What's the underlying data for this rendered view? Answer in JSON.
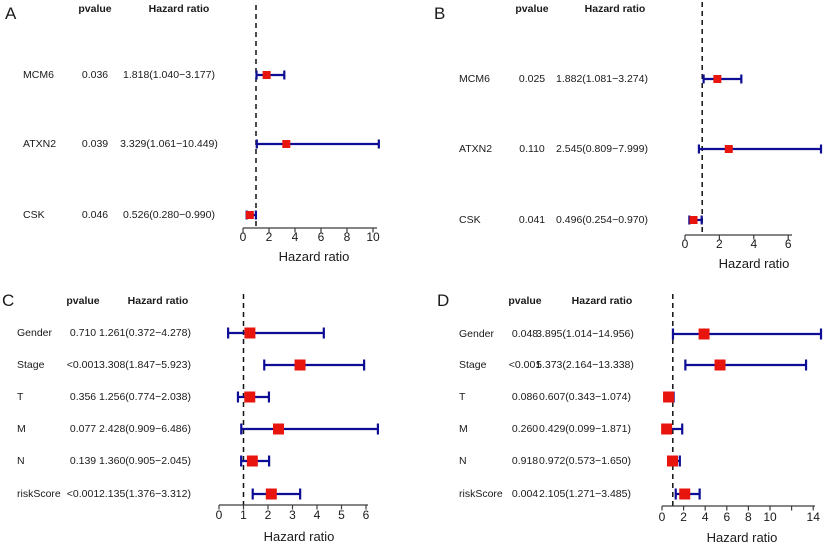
{
  "colors": {
    "background": "#ffffff",
    "text": "#1a1a1a",
    "axis": "#3c3c3c",
    "reference_line": "#111111",
    "whisker": "#0d0d96",
    "box": "#e8150f"
  },
  "chart_data": [
    {
      "type": "forest",
      "panel_label": "A",
      "columns": {
        "pvalue": "pvalue",
        "hazard_ratio": "Hazard ratio"
      },
      "xlabel": "Hazard ratio",
      "reference_line": 1,
      "axis": {
        "min": 0,
        "max": 10.5,
        "ticks": [
          0,
          2,
          4,
          6,
          8,
          10
        ],
        "tick_labels": [
          "0",
          "2",
          "4",
          "6",
          "8",
          "10"
        ]
      },
      "rows": [
        {
          "name": "MCM6",
          "pvalue": "0.036",
          "hr_ci": "1.818(1.040−3.177)",
          "hr": 1.818,
          "ci_low": 1.04,
          "ci_high": 3.177
        },
        {
          "name": "ATXN2",
          "pvalue": "0.039",
          "hr_ci": "3.329(1.061−10.449)",
          "hr": 3.329,
          "ci_low": 1.061,
          "ci_high": 10.449
        },
        {
          "name": "CSK",
          "pvalue": "0.046",
          "hr_ci": "0.526(0.280−0.990)",
          "hr": 0.526,
          "ci_low": 0.28,
          "ci_high": 0.99
        }
      ]
    },
    {
      "type": "forest",
      "panel_label": "B",
      "columns": {
        "pvalue": "pvalue",
        "hazard_ratio": "Hazard ratio"
      },
      "xlabel": "Hazard ratio",
      "reference_line": 1,
      "axis": {
        "min": 0,
        "max": 8,
        "ticks": [
          0,
          2,
          4,
          6
        ],
        "tick_labels": [
          "0",
          "2",
          "4",
          "6"
        ]
      },
      "rows": [
        {
          "name": "MCM6",
          "pvalue": "0.025",
          "hr_ci": "1.882(1.081−3.274)",
          "hr": 1.882,
          "ci_low": 1.081,
          "ci_high": 3.274
        },
        {
          "name": "ATXN2",
          "pvalue": "0.110",
          "hr_ci": "2.545(0.809−7.999)",
          "hr": 2.545,
          "ci_low": 0.809,
          "ci_high": 7.999
        },
        {
          "name": "CSK",
          "pvalue": "0.041",
          "hr_ci": "0.496(0.254−0.970)",
          "hr": 0.496,
          "ci_low": 0.254,
          "ci_high": 0.97
        }
      ]
    },
    {
      "type": "forest",
      "panel_label": "C",
      "columns": {
        "pvalue": "pvalue",
        "hazard_ratio": "Hazard ratio"
      },
      "xlabel": "Hazard ratio",
      "reference_line": 1,
      "axis": {
        "min": 0,
        "max": 6.5,
        "ticks": [
          0,
          1,
          2,
          3,
          4,
          5,
          6
        ],
        "tick_labels": [
          "0",
          "1",
          "2",
          "3",
          "4",
          "5",
          "6"
        ]
      },
      "rows": [
        {
          "name": "Gender",
          "pvalue": "0.710",
          "hr_ci": "1.261(0.372−4.278)",
          "hr": 1.261,
          "ci_low": 0.372,
          "ci_high": 4.278
        },
        {
          "name": "Stage",
          "pvalue": "<0.001",
          "hr_ci": "3.308(1.847−5.923)",
          "hr": 3.308,
          "ci_low": 1.847,
          "ci_high": 5.923
        },
        {
          "name": "T",
          "pvalue": "0.356",
          "hr_ci": "1.256(0.774−2.038)",
          "hr": 1.256,
          "ci_low": 0.774,
          "ci_high": 2.038
        },
        {
          "name": "M",
          "pvalue": "0.077",
          "hr_ci": "2.428(0.909−6.486)",
          "hr": 2.428,
          "ci_low": 0.909,
          "ci_high": 6.486
        },
        {
          "name": "N",
          "pvalue": "0.139",
          "hr_ci": "1.360(0.905−2.045)",
          "hr": 1.36,
          "ci_low": 0.905,
          "ci_high": 2.045
        },
        {
          "name": "riskScore",
          "pvalue": "<0.001",
          "hr_ci": "2.135(1.376−3.312)",
          "hr": 2.135,
          "ci_low": 1.376,
          "ci_high": 3.312
        }
      ]
    },
    {
      "type": "forest",
      "panel_label": "D",
      "columns": {
        "pvalue": "pvalue",
        "hazard_ratio": "Hazard ratio"
      },
      "xlabel": "Hazard ratio",
      "reference_line": 1,
      "axis": {
        "min": 0,
        "max": 15,
        "ticks": [
          0,
          2,
          4,
          6,
          8,
          10,
          12,
          14
        ],
        "tick_labels": [
          "0",
          "2",
          "4",
          "6",
          "8",
          "10",
          "",
          "14"
        ]
      },
      "rows": [
        {
          "name": "Gender",
          "pvalue": "0.048",
          "hr_ci": "3.895(1.014−14.956)",
          "hr": 3.895,
          "ci_low": 1.014,
          "ci_high": 14.956
        },
        {
          "name": "Stage",
          "pvalue": "<0.001",
          "hr_ci": "5.373(2.164−13.338)",
          "hr": 5.373,
          "ci_low": 2.164,
          "ci_high": 13.338
        },
        {
          "name": "T",
          "pvalue": "0.086",
          "hr_ci": "0.607(0.343−1.074)",
          "hr": 0.607,
          "ci_low": 0.343,
          "ci_high": 1.074
        },
        {
          "name": "M",
          "pvalue": "0.260",
          "hr_ci": "0.429(0.099−1.871)",
          "hr": 0.429,
          "ci_low": 0.099,
          "ci_high": 1.871
        },
        {
          "name": "N",
          "pvalue": "0.918",
          "hr_ci": "0.972(0.573−1.650)",
          "hr": 0.972,
          "ci_low": 0.573,
          "ci_high": 1.65
        },
        {
          "name": "riskScore",
          "pvalue": "0.004",
          "hr_ci": "2.105(1.271−3.485)",
          "hr": 2.105,
          "ci_low": 1.271,
          "ci_high": 3.485
        }
      ]
    }
  ]
}
